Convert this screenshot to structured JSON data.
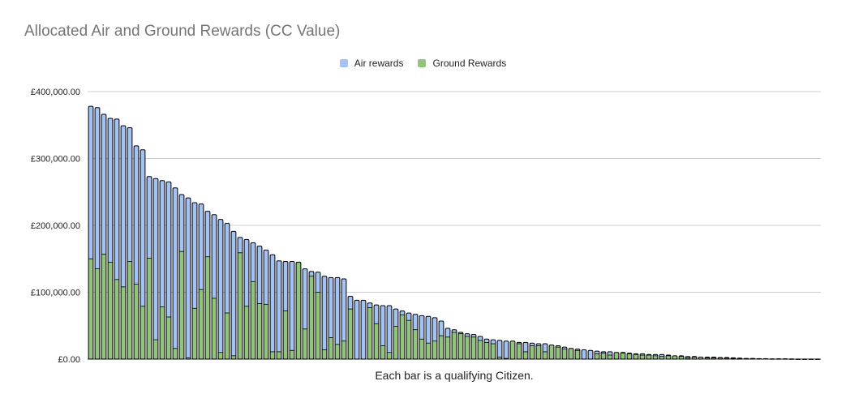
{
  "chart_data": {
    "type": "bar",
    "stacked": true,
    "title": "Allocated Air and Ground Rewards (CC Value)",
    "xlabel": "Each bar is a qualifying Citizen.",
    "ylabel": "",
    "ylim": [
      0,
      400000
    ],
    "yticks": [
      {
        "value": 0,
        "label": "£0.00"
      },
      {
        "value": 100000,
        "label": "£100,000.00"
      },
      {
        "value": 200000,
        "label": "£200,000.00"
      },
      {
        "value": 300000,
        "label": "£300,000.00"
      },
      {
        "value": 400000,
        "label": "£400,000.00"
      }
    ],
    "grid": true,
    "legend_position": "top-center",
    "colors": {
      "air": "#a4c2f4",
      "ground": "#93c47d",
      "outline": "#000000",
      "grid": "#cccccc"
    },
    "series": [
      {
        "name": "Ground Rewards",
        "color": "#93c47d",
        "values": [
          150000,
          135000,
          157000,
          145000,
          119000,
          108000,
          146000,
          112000,
          79000,
          151000,
          29000,
          78000,
          63000,
          16000,
          161000,
          2000,
          76000,
          104000,
          153000,
          91000,
          10000,
          69000,
          5000,
          159000,
          79000,
          116000,
          83000,
          82000,
          11000,
          11000,
          72000,
          13000,
          145000,
          45000,
          124000,
          100000,
          14000,
          32000,
          22000,
          27000,
          75000,
          0,
          0,
          77000,
          53000,
          20000,
          10000,
          49000,
          66000,
          58000,
          44000,
          30000,
          24000,
          27000,
          35000,
          33000,
          40000,
          38000,
          34000,
          33000,
          28000,
          25000,
          23000,
          3000,
          1000,
          27000,
          23000,
          11000,
          20000,
          20000,
          11000,
          21000,
          18000,
          15000,
          16000,
          13000,
          0,
          0,
          8000,
          9000,
          6000,
          10000,
          9000,
          8000,
          7000,
          6000,
          6000,
          5000,
          4000,
          5000,
          5000,
          4000,
          2000,
          3000,
          3000,
          2000,
          2000,
          2000,
          1500,
          1000,
          1000,
          1000,
          500,
          500,
          500,
          500,
          300,
          300,
          200,
          100,
          100,
          100,
          100
        ],
        "values_note": "approximate, read from chart"
      },
      {
        "name": "Air rewards",
        "color": "#a4c2f4",
        "values": [
          228000,
          241000,
          209000,
          215000,
          240000,
          241000,
          200000,
          207000,
          234000,
          122000,
          241000,
          189000,
          202000,
          240000,
          85000,
          239000,
          158000,
          128000,
          68000,
          125000,
          199000,
          134000,
          186000,
          23000,
          100000,
          58000,
          86000,
          81000,
          145000,
          136000,
          74000,
          133000,
          0,
          90000,
          7000,
          30000,
          110000,
          90000,
          100000,
          93000,
          19000,
          88000,
          88000,
          7000,
          28000,
          60000,
          70000,
          26000,
          6000,
          11000,
          23000,
          35000,
          40000,
          35000,
          22000,
          13000,
          4000,
          2000,
          4000,
          4000,
          6000,
          5000,
          6000,
          25000,
          26000,
          0,
          2000,
          14000,
          4000,
          3000,
          12000,
          0,
          2000,
          3000,
          0,
          2000,
          14000,
          13000,
          4000,
          2000,
          5000,
          0,
          1000,
          1000,
          1000,
          2000,
          1000,
          2000,
          3000,
          1000,
          0,
          1000,
          2000,
          1000,
          0,
          1000,
          1000,
          500,
          1000,
          1000,
          500,
          0,
          500,
          300,
          200,
          0,
          200,
          100,
          100,
          100,
          0,
          0,
          0
        ]
      }
    ]
  },
  "legend": {
    "air_label": "Air rewards",
    "ground_label": "Ground Rewards"
  }
}
